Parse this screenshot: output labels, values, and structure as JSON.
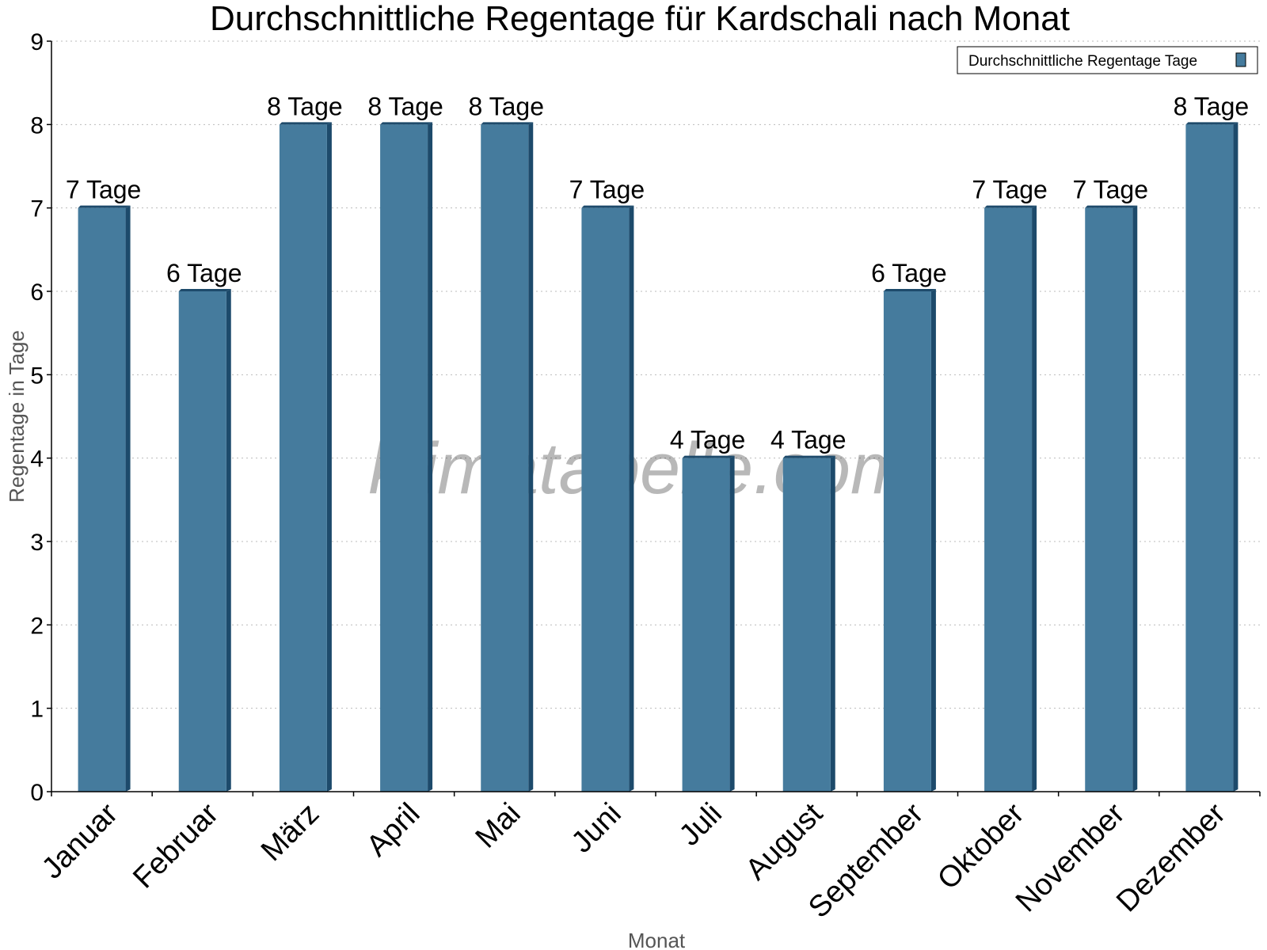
{
  "chart_data": {
    "type": "bar",
    "title": "Durchschnittliche Regentage für Kardschali nach Monat",
    "xlabel": "Monat",
    "ylabel": "Regentage in Tage",
    "ylim": [
      0,
      9
    ],
    "yticks": [
      "0",
      "1",
      "2",
      "3",
      "4",
      "5",
      "6",
      "7",
      "8",
      "9"
    ],
    "grid": true,
    "legend_position": "top-right",
    "categories": [
      "Januar",
      "Februar",
      "März",
      "April",
      "Mai",
      "Juni",
      "Juli",
      "August",
      "September",
      "Oktober",
      "November",
      "Dezember"
    ],
    "series": [
      {
        "name": "Durchschnittliche Regentage Tage",
        "values": [
          7,
          6,
          8,
          8,
          8,
          7,
          4,
          4,
          6,
          7,
          7,
          8
        ],
        "labels": [
          "7 Tage",
          "6 Tage",
          "8 Tage",
          "8 Tage",
          "8 Tage",
          "7 Tage",
          "4 Tage",
          "4 Tage",
          "6 Tage",
          "7 Tage",
          "7 Tage",
          "8 Tage"
        ],
        "color": "#457b9d",
        "shade_color": "#1d4a6b"
      }
    ]
  },
  "watermark": "klimatabelle.com"
}
